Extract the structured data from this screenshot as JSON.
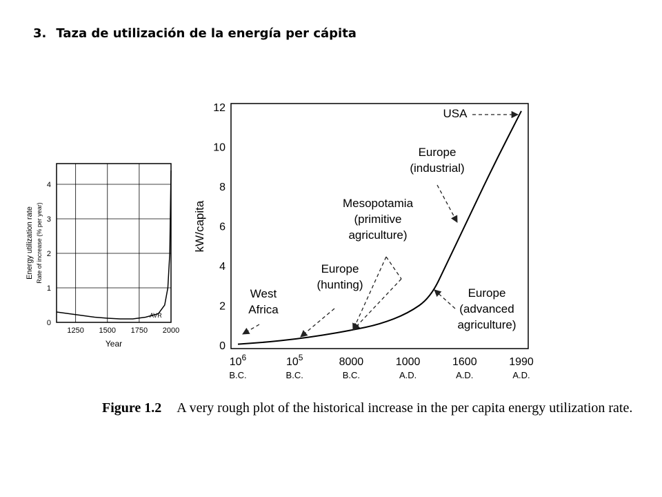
{
  "slide": {
    "number": "3.",
    "title": "Taza de utilización de la energía per cápita"
  },
  "caption": {
    "figure_label": "Figure 1.2",
    "text": "A very rough plot of the historical increase in the per capita energy utilization rate."
  },
  "chart_data": [
    {
      "type": "line",
      "title": "",
      "xlabel": "Year",
      "ylabel": "Energy utilization rate",
      "ylabel2": "Rate of increase (% per year)",
      "x_ticks": [
        "1250",
        "1500",
        "1750",
        "2000"
      ],
      "y_ticks": [
        "0",
        "1",
        "2",
        "3",
        "4"
      ],
      "xlim": [
        1100,
        2000
      ],
      "ylim": [
        0,
        4.6
      ],
      "grid": true,
      "series": [
        {
          "x": [
            1100,
            1200,
            1300,
            1400,
            1500,
            1600,
            1700,
            1800,
            1900,
            1950,
            1975,
            1990,
            2000
          ],
          "y": [
            0.3,
            0.25,
            0.2,
            0.15,
            0.12,
            0.1,
            0.1,
            0.15,
            0.25,
            0.5,
            1.0,
            2.0,
            4.4
          ]
        }
      ],
      "annotations": [
        {
          "text": "AVR",
          "x": 1880,
          "y": 0.1
        }
      ]
    },
    {
      "type": "line",
      "title": "",
      "xlabel": "",
      "ylabel": "kW/capita",
      "ylim": [
        0,
        12
      ],
      "y_ticks": [
        "0",
        "2",
        "4",
        "6",
        "8",
        "10",
        "12"
      ],
      "x_ticks": [
        {
          "top": "10",
          "sup": "6",
          "bottom": "B.C."
        },
        {
          "top": "10",
          "sup": "5",
          "bottom": "B.C."
        },
        {
          "top": "8000",
          "sup": "",
          "bottom": "B.C."
        },
        {
          "top": "1000",
          "sup": "",
          "bottom": "A.D."
        },
        {
          "top": "1600",
          "sup": "",
          "bottom": "A.D."
        },
        {
          "top": "1990",
          "sup": "",
          "bottom": "A.D."
        }
      ],
      "grid": false,
      "series": [
        {
          "x": [
            0,
            0.5,
            1,
            1.5,
            2,
            2.5,
            3,
            3.4,
            3.7,
            4,
            4.5,
            5
          ],
          "y": [
            0.05,
            0.15,
            0.3,
            0.5,
            0.75,
            1.05,
            1.6,
            2.4,
            4.2,
            6.0,
            9.0,
            11.8
          ]
        }
      ],
      "annotations": [
        {
          "text": [
            "West",
            "Africa"
          ],
          "x": 0.02,
          "y": 0.05
        },
        {
          "text": [
            "Europe",
            "(hunting)"
          ],
          "x": 1.1,
          "y": 0.35
        },
        {
          "text": [
            "Mesopotamia",
            "(primitive",
            "agriculture)"
          ],
          "x": 1.9,
          "y": 0.65
        },
        {
          "text": [
            "Europe",
            "(advanced",
            "agriculture)"
          ],
          "x": 3.45,
          "y": 2.6
        },
        {
          "text": [
            "Europe",
            "(industrial)"
          ],
          "x": 3.95,
          "y": 6.0
        },
        {
          "text": [
            "USA"
          ],
          "x": 4.98,
          "y": 11.6
        }
      ]
    }
  ]
}
